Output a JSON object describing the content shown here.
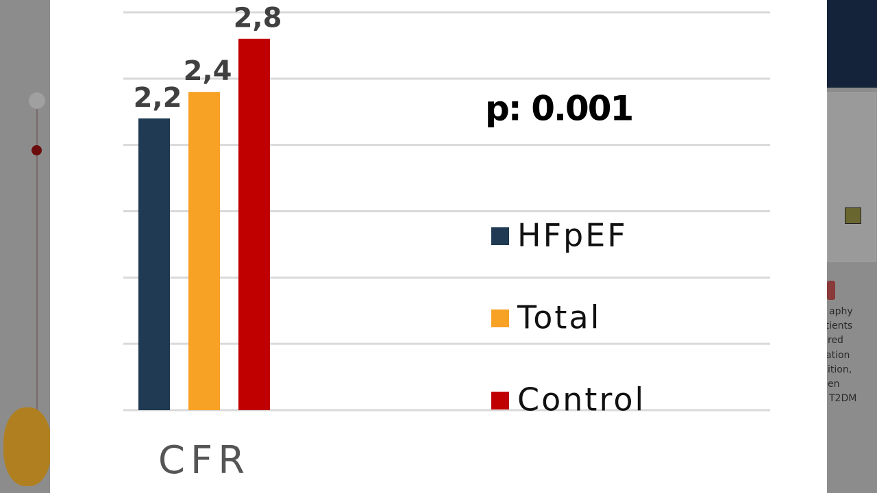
{
  "background": {
    "texts": [
      "aphy",
      "atients",
      "red",
      "ation",
      "ition,",
      "en",
      "T2DM"
    ]
  },
  "chart_data": {
    "type": "bar",
    "categories": [
      "CFR"
    ],
    "series": [
      {
        "name": "HFpEF",
        "color": "#1f3a52",
        "values": [
          2.2
        ],
        "value_labels": [
          "2,2"
        ]
      },
      {
        "name": "Total",
        "color": "#f7a125",
        "values": [
          2.4
        ],
        "value_labels": [
          "2,4"
        ]
      },
      {
        "name": "Control",
        "color": "#c00000",
        "values": [
          2.8
        ],
        "value_labels": [
          "2,8"
        ]
      }
    ],
    "ylim": [
      0,
      3
    ],
    "yticks": [
      0,
      0.5,
      1,
      1.5,
      2,
      2.5,
      3
    ],
    "show_tick_labels": false,
    "grid": true,
    "legend": "right",
    "annotations": [
      "p: 0.001"
    ]
  }
}
